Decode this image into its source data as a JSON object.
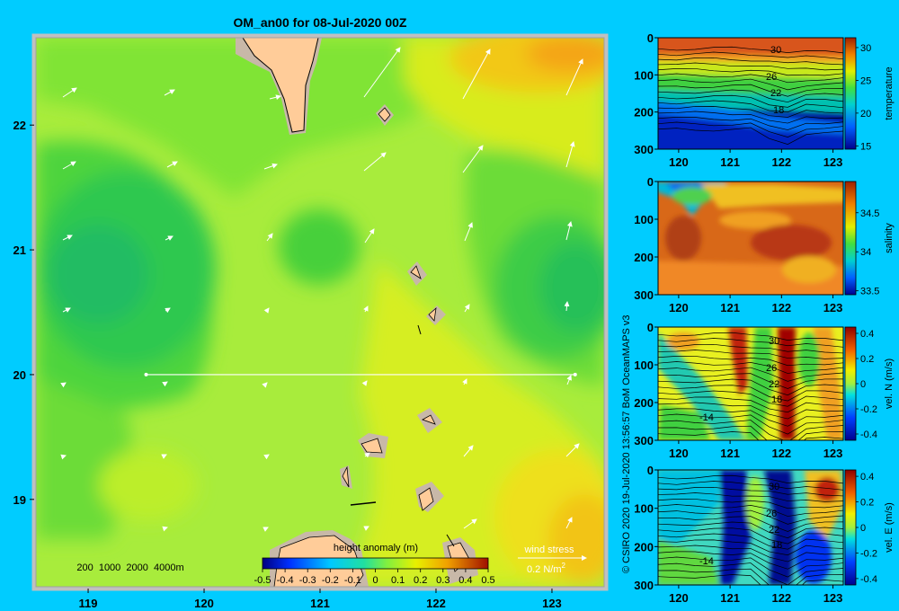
{
  "map": {
    "title": "OM_an00 for 08-Jul-2020 00Z",
    "x_ticks": [
      "119",
      "120",
      "121",
      "122",
      "123"
    ],
    "x_tick_values": [
      119,
      120,
      121,
      122,
      123
    ],
    "y_ticks": [
      "22",
      "21",
      "20",
      "19"
    ],
    "y_tick_values": [
      22,
      21,
      20,
      19
    ],
    "xlim": [
      118.55,
      123.45
    ],
    "ylim": [
      18.3,
      22.7
    ],
    "depth_legend": "200  1000  2000  4000m",
    "colorbar_title": "height anomaly (m)",
    "colorbar_ticks": [
      "-0.5",
      "-0.4",
      "-0.3",
      "-0.2",
      "-0.1",
      "0",
      "0.1",
      "0.2",
      "0.3",
      "0.4",
      "0.5"
    ],
    "wind_label": "wind stress",
    "wind_unit": "0.2 N/m",
    "wind_unit_sup": "2",
    "section_latitude": 20,
    "section_lon_range": [
      119.5,
      123.2
    ]
  },
  "credit": "© CSIRO 2020   19-Jul-2020 13:56:57 BoM OceanMAPS v3",
  "panels": [
    {
      "id": "temperature",
      "label": "temperature",
      "y_ticks": [
        "0",
        "100",
        "200",
        "300"
      ],
      "x_ticks": [
        "120",
        "121",
        "122",
        "123"
      ],
      "cb_ticks": [
        "30",
        "25",
        "20",
        "15"
      ],
      "contour_labels": [
        "30",
        "26",
        "22",
        "18"
      ]
    },
    {
      "id": "salinity",
      "label": "salinity",
      "y_ticks": [
        "0",
        "100",
        "200",
        "300"
      ],
      "x_ticks": [
        "120",
        "121",
        "122",
        "123"
      ],
      "cb_ticks": [
        "34.5",
        "34",
        "33.5"
      ],
      "contour_labels": []
    },
    {
      "id": "vel-n",
      "label": "vel. N (m/s)",
      "y_ticks": [
        "0",
        "100",
        "200",
        "300"
      ],
      "x_ticks": [
        "120",
        "121",
        "122",
        "123"
      ],
      "cb_ticks": [
        "0.4",
        "0.2",
        "0",
        "-0.2",
        "-0.4"
      ],
      "contour_labels": [
        "30",
        "26",
        "22",
        "18",
        "-14"
      ]
    },
    {
      "id": "vel-e",
      "label": "vel. E (m/s)",
      "y_ticks": [
        "0",
        "100",
        "200",
        "300"
      ],
      "x_ticks": [
        "120",
        "121",
        "122",
        "123"
      ],
      "cb_ticks": [
        "0.4",
        "0.2",
        "0",
        "-0.2",
        "-0.4"
      ],
      "contour_labels": [
        "30",
        "26",
        "22",
        "18",
        "-14"
      ]
    }
  ],
  "chart_data": [
    {
      "type": "heatmap",
      "title": "OM_an00 for 08-Jul-2020 00Z",
      "colorbar_label": "height anomaly (m)",
      "colorbar_range": [
        -0.5,
        0.5
      ],
      "xlim": [
        118.55,
        123.45
      ],
      "ylim": [
        18.3,
        22.7
      ],
      "x_ticks": [
        119,
        120,
        121,
        122,
        123
      ],
      "y_ticks": [
        19,
        20,
        21,
        22
      ],
      "features": [
        "lows near 118.8E 20.8N and 123.2E 20.6N (about 0.0 m)",
        "highs in northeast near 123.2E 22.5N (about 0.3 m) and south-east (about 0.25 m)",
        "white wind stress vectors pointing northeast"
      ],
      "section_latitude": 20
    },
    {
      "type": "heatmap",
      "label": "temperature",
      "xlim": [
        119.6,
        123.2
      ],
      "ylim": [
        300,
        0
      ],
      "colorbar_range": [
        15,
        31
      ],
      "contour_labels": [
        30,
        26,
        22,
        18
      ]
    },
    {
      "type": "heatmap",
      "label": "salinity",
      "xlim": [
        119.6,
        123.2
      ],
      "ylim": [
        300,
        0
      ],
      "colorbar_range": [
        33.45,
        34.9
      ]
    },
    {
      "type": "heatmap",
      "label": "vel. N (m/s)",
      "xlim": [
        119.6,
        123.2
      ],
      "ylim": [
        300,
        0
      ],
      "colorbar_range": [
        -0.45,
        0.45
      ]
    },
    {
      "type": "heatmap",
      "label": "vel. E (m/s)",
      "xlim": [
        119.6,
        123.2
      ],
      "ylim": [
        300,
        0
      ],
      "colorbar_range": [
        -0.45,
        0.45
      ]
    }
  ]
}
